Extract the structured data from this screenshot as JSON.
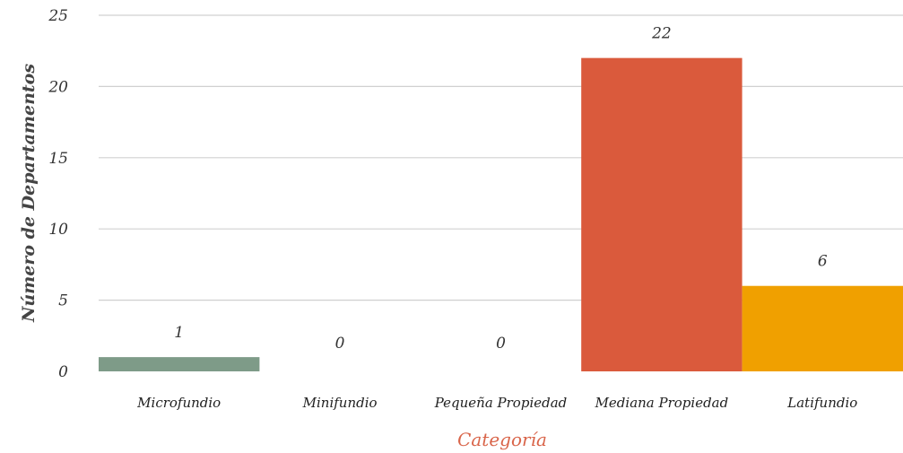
{
  "chart_data": {
    "type": "bar",
    "categories": [
      "Microfundio",
      "Minifundio",
      "Pequeña Propiedad",
      "Mediana Propiedad",
      "Latifundio"
    ],
    "values": [
      1,
      0,
      0,
      22,
      6
    ],
    "data_labels": [
      "1",
      "0",
      "0",
      "22",
      "6"
    ],
    "colors": [
      "#7e9b88",
      "#7e9b88",
      "#7e9b88",
      "#da5a3c",
      "#f0a000"
    ],
    "xlabel": "Categoría",
    "xlabel_color": "#d9654a",
    "ylabel": "Número de Departamentos",
    "ylim": [
      0,
      25
    ],
    "yticks": [
      "0",
      "5",
      "10",
      "15",
      "20",
      "25"
    ],
    "grid": true,
    "legend": "none"
  }
}
